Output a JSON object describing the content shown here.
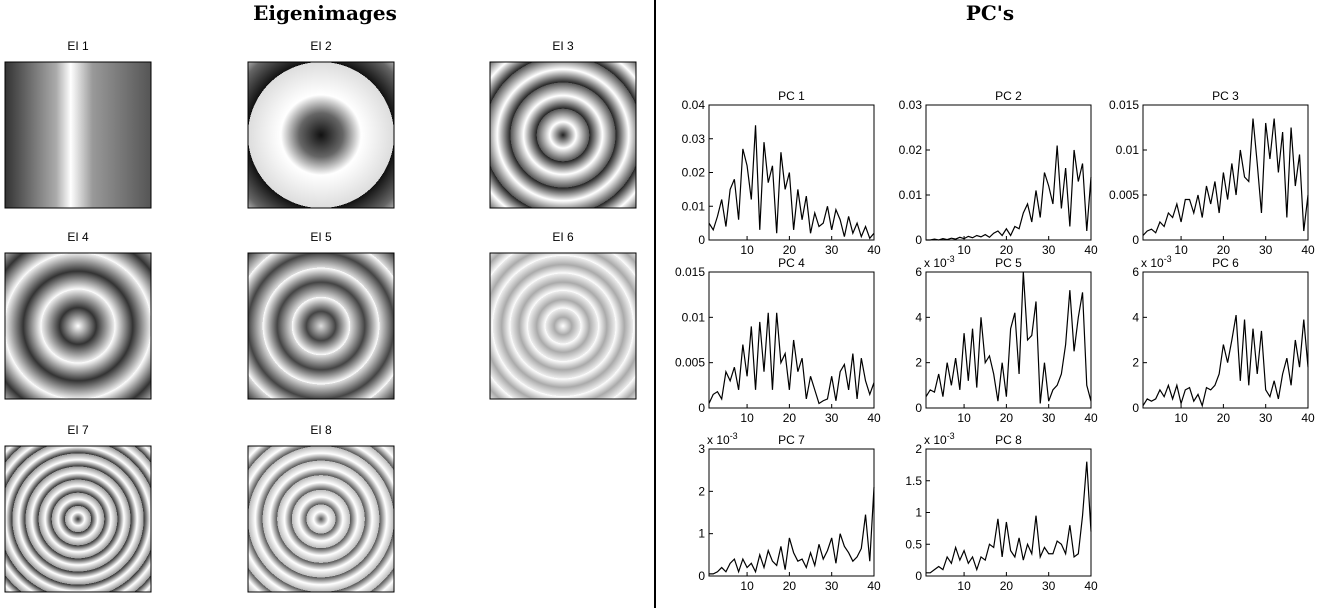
{
  "left_panel": {
    "title": "Eigenimages",
    "labels": [
      "EI 1",
      "EI 2",
      "EI 3",
      "EI 4",
      "EI 5",
      "EI 6",
      "EI 7",
      "EI 8"
    ]
  },
  "right_panel": {
    "title": "PC's"
  },
  "chart_data": [
    {
      "type": "line",
      "title": "PC 1",
      "color": "#000000",
      "x": [
        1,
        2,
        3,
        4,
        5,
        6,
        7,
        8,
        9,
        10,
        11,
        12,
        13,
        14,
        15,
        16,
        17,
        18,
        19,
        20,
        21,
        22,
        23,
        24,
        25,
        26,
        27,
        28,
        29,
        30,
        31,
        32,
        33,
        34,
        35,
        36,
        37,
        38,
        39,
        40
      ],
      "values": [
        0.005,
        0.003,
        0.007,
        0.012,
        0.004,
        0.015,
        0.018,
        0.006,
        0.027,
        0.022,
        0.012,
        0.034,
        0.003,
        0.029,
        0.017,
        0.022,
        0.002,
        0.026,
        0.015,
        0.02,
        0.003,
        0.015,
        0.006,
        0.013,
        0.002,
        0.008,
        0.004,
        0.005,
        0.01,
        0.003,
        0.009,
        0.006,
        0.001,
        0.007,
        0.002,
        0.005,
        0.001,
        0.004,
        0.0005,
        0.002
      ],
      "xlim": [
        1,
        40
      ],
      "xticks": [
        10,
        20,
        30,
        40
      ],
      "ylim": [
        0,
        0.04
      ],
      "yticks": [
        0,
        0.01,
        0.02,
        0.03,
        0.04
      ]
    },
    {
      "type": "line",
      "title": "PC 2",
      "color": "#000000",
      "x": [
        1,
        2,
        3,
        4,
        5,
        6,
        7,
        8,
        9,
        10,
        11,
        12,
        13,
        14,
        15,
        16,
        17,
        18,
        19,
        20,
        21,
        22,
        23,
        24,
        25,
        26,
        27,
        28,
        29,
        30,
        31,
        32,
        33,
        34,
        35,
        36,
        37,
        38,
        39,
        40
      ],
      "values": [
        0,
        0,
        0.0002,
        0,
        0.0003,
        0.0001,
        0.0004,
        0.0002,
        0.0006,
        0.0003,
        0.0008,
        0.0005,
        0.001,
        0.0007,
        0.0012,
        0.0006,
        0.0015,
        0.002,
        0.001,
        0.0025,
        0.001,
        0.003,
        0.0025,
        0.006,
        0.008,
        0.004,
        0.011,
        0.005,
        0.015,
        0.012,
        0.008,
        0.021,
        0.007,
        0.016,
        0.003,
        0.02,
        0.013,
        0.017,
        0.002,
        0.014
      ],
      "xlim": [
        1,
        40
      ],
      "xticks": [
        10,
        20,
        30,
        40
      ],
      "ylim": [
        0,
        0.03
      ],
      "yticks": [
        0,
        0.01,
        0.02,
        0.03
      ]
    },
    {
      "type": "line",
      "title": "PC 3",
      "color": "#000000",
      "x": [
        1,
        2,
        3,
        4,
        5,
        6,
        7,
        8,
        9,
        10,
        11,
        12,
        13,
        14,
        15,
        16,
        17,
        18,
        19,
        20,
        21,
        22,
        23,
        24,
        25,
        26,
        27,
        28,
        29,
        30,
        31,
        32,
        33,
        34,
        35,
        36,
        37,
        38,
        39,
        40
      ],
      "values": [
        0.0005,
        0.001,
        0.0012,
        0.0008,
        0.002,
        0.0015,
        0.003,
        0.0025,
        0.004,
        0.002,
        0.0045,
        0.0045,
        0.003,
        0.005,
        0.0025,
        0.006,
        0.004,
        0.0065,
        0.003,
        0.0075,
        0.0045,
        0.0085,
        0.005,
        0.01,
        0.007,
        0.0065,
        0.0135,
        0.0085,
        0.003,
        0.013,
        0.009,
        0.0135,
        0.0075,
        0.012,
        0.0025,
        0.0125,
        0.006,
        0.0095,
        0.001,
        0.005
      ],
      "xlim": [
        1,
        40
      ],
      "xticks": [
        10,
        20,
        30,
        40
      ],
      "ylim": [
        0,
        0.015
      ],
      "yticks": [
        0,
        0.005,
        0.01,
        0.015
      ]
    },
    {
      "type": "line",
      "title": "PC 4",
      "color": "#000000",
      "x": [
        1,
        2,
        3,
        4,
        5,
        6,
        7,
        8,
        9,
        10,
        11,
        12,
        13,
        14,
        15,
        16,
        17,
        18,
        19,
        20,
        21,
        22,
        23,
        24,
        25,
        26,
        27,
        28,
        29,
        30,
        31,
        32,
        33,
        34,
        35,
        36,
        37,
        38,
        39,
        40
      ],
      "values": [
        0.0005,
        0.0015,
        0.0018,
        0.001,
        0.004,
        0.003,
        0.0045,
        0.002,
        0.007,
        0.0035,
        0.009,
        0.002,
        0.0095,
        0.004,
        0.0105,
        0.002,
        0.0105,
        0.005,
        0.006,
        0.002,
        0.0075,
        0.004,
        0.0055,
        0.001,
        0.0035,
        0.002,
        0.0005,
        0.0008,
        0.001,
        0.0035,
        0.0008,
        0.004,
        0.0048,
        0.002,
        0.006,
        0.001,
        0.0055,
        0.003,
        0.0015,
        0.0028
      ],
      "xlim": [
        1,
        40
      ],
      "xticks": [
        10,
        20,
        30,
        40
      ],
      "ylim": [
        0,
        0.015
      ],
      "yticks": [
        0,
        0.005,
        0.01,
        0.015
      ]
    },
    {
      "type": "line",
      "title": "PC 5",
      "color": "#000000",
      "y_multiplier": "x 10",
      "y_multiplier_exponent": "-3",
      "x": [
        1,
        2,
        3,
        4,
        5,
        6,
        7,
        8,
        9,
        10,
        11,
        12,
        13,
        14,
        15,
        16,
        17,
        18,
        19,
        20,
        21,
        22,
        23,
        24,
        25,
        26,
        27,
        28,
        29,
        30,
        31,
        32,
        33,
        34,
        35,
        36,
        37,
        38,
        39,
        40
      ],
      "values": [
        0.5,
        0.8,
        0.7,
        1.5,
        0.5,
        2.0,
        1.0,
        2.2,
        0.8,
        3.3,
        1.2,
        3.5,
        0.9,
        4.0,
        2.0,
        2.3,
        1.5,
        0.3,
        2.0,
        0.5,
        3.5,
        4.2,
        1.5,
        6.0,
        3.0,
        3.2,
        4.7,
        0.2,
        2.0,
        0.3,
        0.8,
        1.0,
        1.5,
        2.8,
        5.2,
        2.5,
        4.0,
        5.1,
        1.0,
        0.3
      ],
      "xlim": [
        1,
        40
      ],
      "xticks": [
        10,
        20,
        30,
        40
      ],
      "ylim": [
        0,
        6
      ],
      "yticks": [
        0,
        2,
        4,
        6
      ]
    },
    {
      "type": "line",
      "title": "PC 6",
      "color": "#000000",
      "y_multiplier": "x 10",
      "y_multiplier_exponent": "-3",
      "x": [
        1,
        2,
        3,
        4,
        5,
        6,
        7,
        8,
        9,
        10,
        11,
        12,
        13,
        14,
        15,
        16,
        17,
        18,
        19,
        20,
        21,
        22,
        23,
        24,
        25,
        26,
        27,
        28,
        29,
        30,
        31,
        32,
        33,
        34,
        35,
        36,
        37,
        38,
        39,
        40
      ],
      "values": [
        0.1,
        0.4,
        0.3,
        0.4,
        0.8,
        0.5,
        1.0,
        0.4,
        1.0,
        0.2,
        0.8,
        0.9,
        0.3,
        0.6,
        0.1,
        0.9,
        0.8,
        1.0,
        1.5,
        2.8,
        2.0,
        3.0,
        4.1,
        1.2,
        3.9,
        1.0,
        3.5,
        1.5,
        3.4,
        0.8,
        0.5,
        1.2,
        0.4,
        1.5,
        2.2,
        1.0,
        3.0,
        1.8,
        3.9,
        1.8
      ],
      "xlim": [
        1,
        40
      ],
      "xticks": [
        10,
        20,
        30,
        40
      ],
      "ylim": [
        0,
        6
      ],
      "yticks": [
        0,
        2,
        4,
        6
      ]
    },
    {
      "type": "line",
      "title": "PC 7",
      "color": "#000000",
      "y_multiplier": "x 10",
      "y_multiplier_exponent": "-3",
      "x": [
        1,
        2,
        3,
        4,
        5,
        6,
        7,
        8,
        9,
        10,
        11,
        12,
        13,
        14,
        15,
        16,
        17,
        18,
        19,
        20,
        21,
        22,
        23,
        24,
        25,
        26,
        27,
        28,
        29,
        30,
        31,
        32,
        33,
        34,
        35,
        36,
        37,
        38,
        39,
        40
      ],
      "values": [
        0.05,
        0.05,
        0.1,
        0.2,
        0.1,
        0.3,
        0.4,
        0.1,
        0.4,
        0.2,
        0.3,
        0.1,
        0.5,
        0.2,
        0.6,
        0.35,
        0.25,
        0.7,
        0.15,
        0.9,
        0.55,
        0.35,
        0.4,
        0.2,
        0.55,
        0.25,
        0.75,
        0.4,
        0.6,
        0.9,
        0.3,
        1.0,
        0.7,
        0.55,
        0.35,
        0.45,
        0.65,
        1.45,
        0.35,
        2.1
      ],
      "xlim": [
        1,
        40
      ],
      "xticks": [
        10,
        20,
        30,
        40
      ],
      "ylim": [
        0,
        3
      ],
      "yticks": [
        0,
        1,
        2,
        3
      ]
    },
    {
      "type": "line",
      "title": "PC 8",
      "color": "#000000",
      "y_multiplier": "x 10",
      "y_multiplier_exponent": "-3",
      "x": [
        1,
        2,
        3,
        4,
        5,
        6,
        7,
        8,
        9,
        10,
        11,
        12,
        13,
        14,
        15,
        16,
        17,
        18,
        19,
        20,
        21,
        22,
        23,
        24,
        25,
        26,
        27,
        28,
        29,
        30,
        31,
        32,
        33,
        34,
        35,
        36,
        37,
        38,
        39,
        40
      ],
      "values": [
        0.05,
        0.05,
        0.1,
        0.15,
        0.1,
        0.3,
        0.2,
        0.45,
        0.25,
        0.4,
        0.2,
        0.3,
        0.1,
        0.3,
        0.25,
        0.5,
        0.45,
        0.9,
        0.3,
        0.85,
        0.4,
        0.3,
        0.6,
        0.25,
        0.5,
        0.35,
        0.95,
        0.3,
        0.45,
        0.35,
        0.35,
        0.55,
        0.5,
        0.35,
        0.8,
        0.3,
        0.35,
        0.95,
        1.8,
        0.7
      ],
      "xlim": [
        1,
        40
      ],
      "xticks": [
        10,
        20,
        30,
        40
      ],
      "ylim": [
        0,
        2
      ],
      "yticks": [
        0,
        0.5,
        1,
        1.5,
        2
      ]
    }
  ]
}
